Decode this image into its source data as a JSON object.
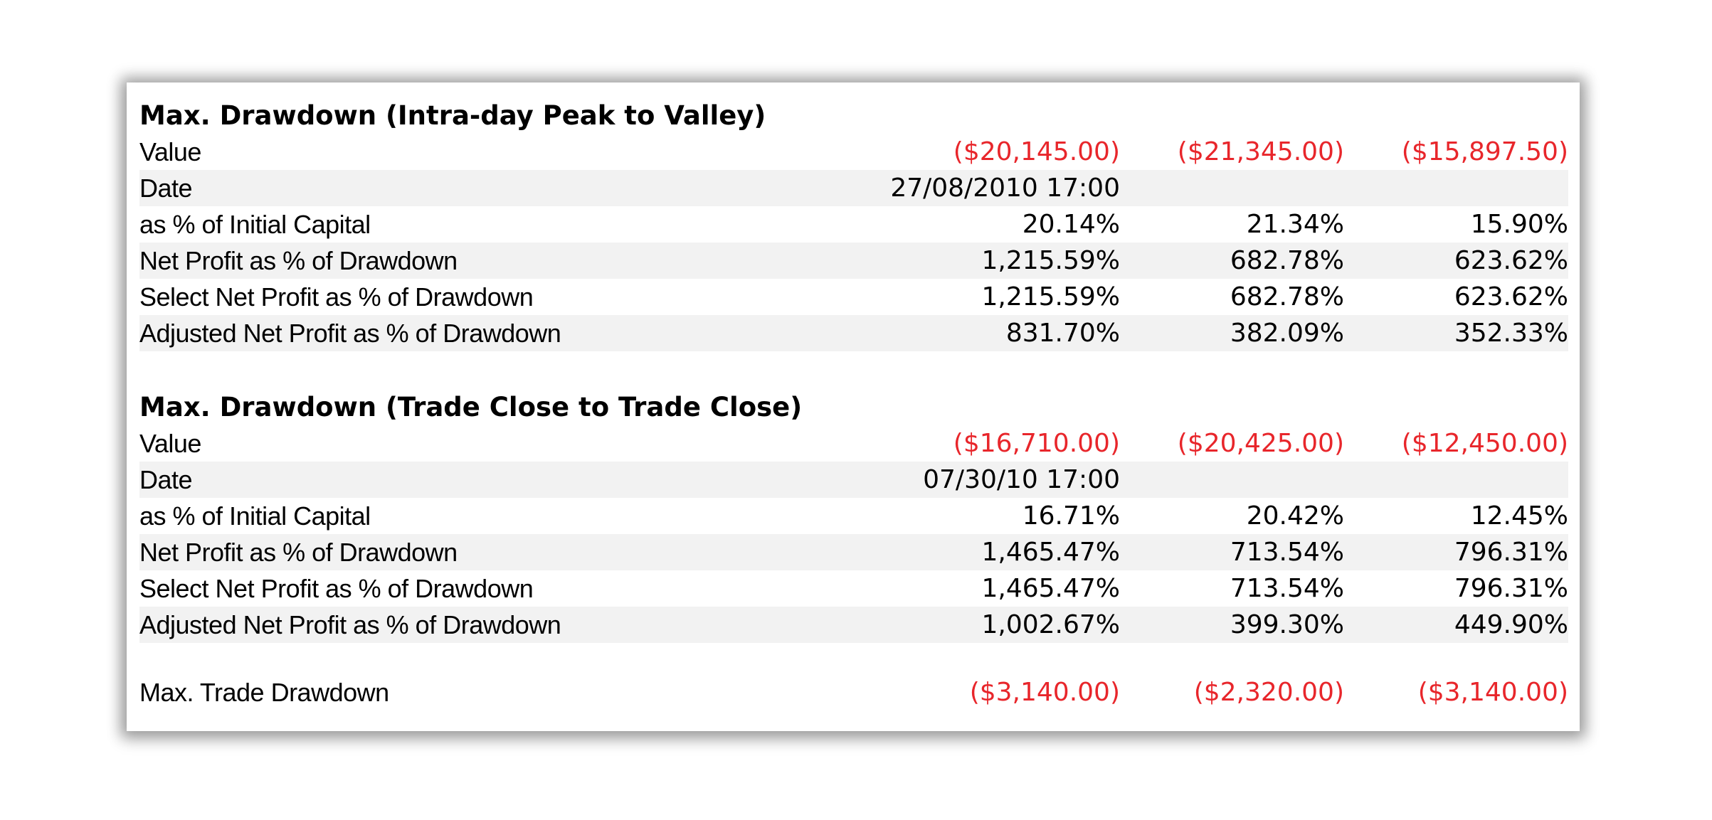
{
  "colors": {
    "negative": "#e8262b",
    "text": "#000000",
    "row_shade": "#f2f2f2"
  },
  "section1": {
    "title": "Max. Drawdown (Intra-day Peak to Valley)",
    "rows": [
      {
        "label": "Value",
        "v1": "($20,145.00)",
        "v2": "($21,345.00)",
        "v3": "($15,897.50)"
      },
      {
        "label": "Date",
        "v1": "27/08/2010 17:00",
        "v2": "",
        "v3": ""
      },
      {
        "label": "as % of Initial Capital",
        "v1": "20.14%",
        "v2": "21.34%",
        "v3": "15.90%"
      },
      {
        "label": "Net Profit as % of Drawdown",
        "v1": "1,215.59%",
        "v2": "682.78%",
        "v3": "623.62%"
      },
      {
        "label": "Select Net Profit as % of Drawdown",
        "v1": "1,215.59%",
        "v2": "682.78%",
        "v3": "623.62%"
      },
      {
        "label": "Adjusted Net Profit as % of Drawdown",
        "v1": "831.70%",
        "v2": "382.09%",
        "v3": "352.33%"
      }
    ]
  },
  "section2": {
    "title": "Max. Drawdown (Trade Close to Trade Close)",
    "rows": [
      {
        "label": "Value",
        "v1": "($16,710.00)",
        "v2": "($20,425.00)",
        "v3": "($12,450.00)"
      },
      {
        "label": "Date",
        "v1": "07/30/10 17:00",
        "v2": "",
        "v3": ""
      },
      {
        "label": "as % of Initial Capital",
        "v1": "16.71%",
        "v2": "20.42%",
        "v3": "12.45%"
      },
      {
        "label": "Net Profit as % of Drawdown",
        "v1": "1,465.47%",
        "v2": "713.54%",
        "v3": "796.31%"
      },
      {
        "label": "Select Net Profit as % of Drawdown",
        "v1": "1,465.47%",
        "v2": "713.54%",
        "v3": "796.31%"
      },
      {
        "label": "Adjusted Net Profit as % of Drawdown",
        "v1": "1,002.67%",
        "v2": "399.30%",
        "v3": "449.90%"
      }
    ]
  },
  "section3": {
    "rows": [
      {
        "label": "Max. Trade Drawdown",
        "v1": "($3,140.00)",
        "v2": "($2,320.00)",
        "v3": "($3,140.00)"
      }
    ]
  }
}
